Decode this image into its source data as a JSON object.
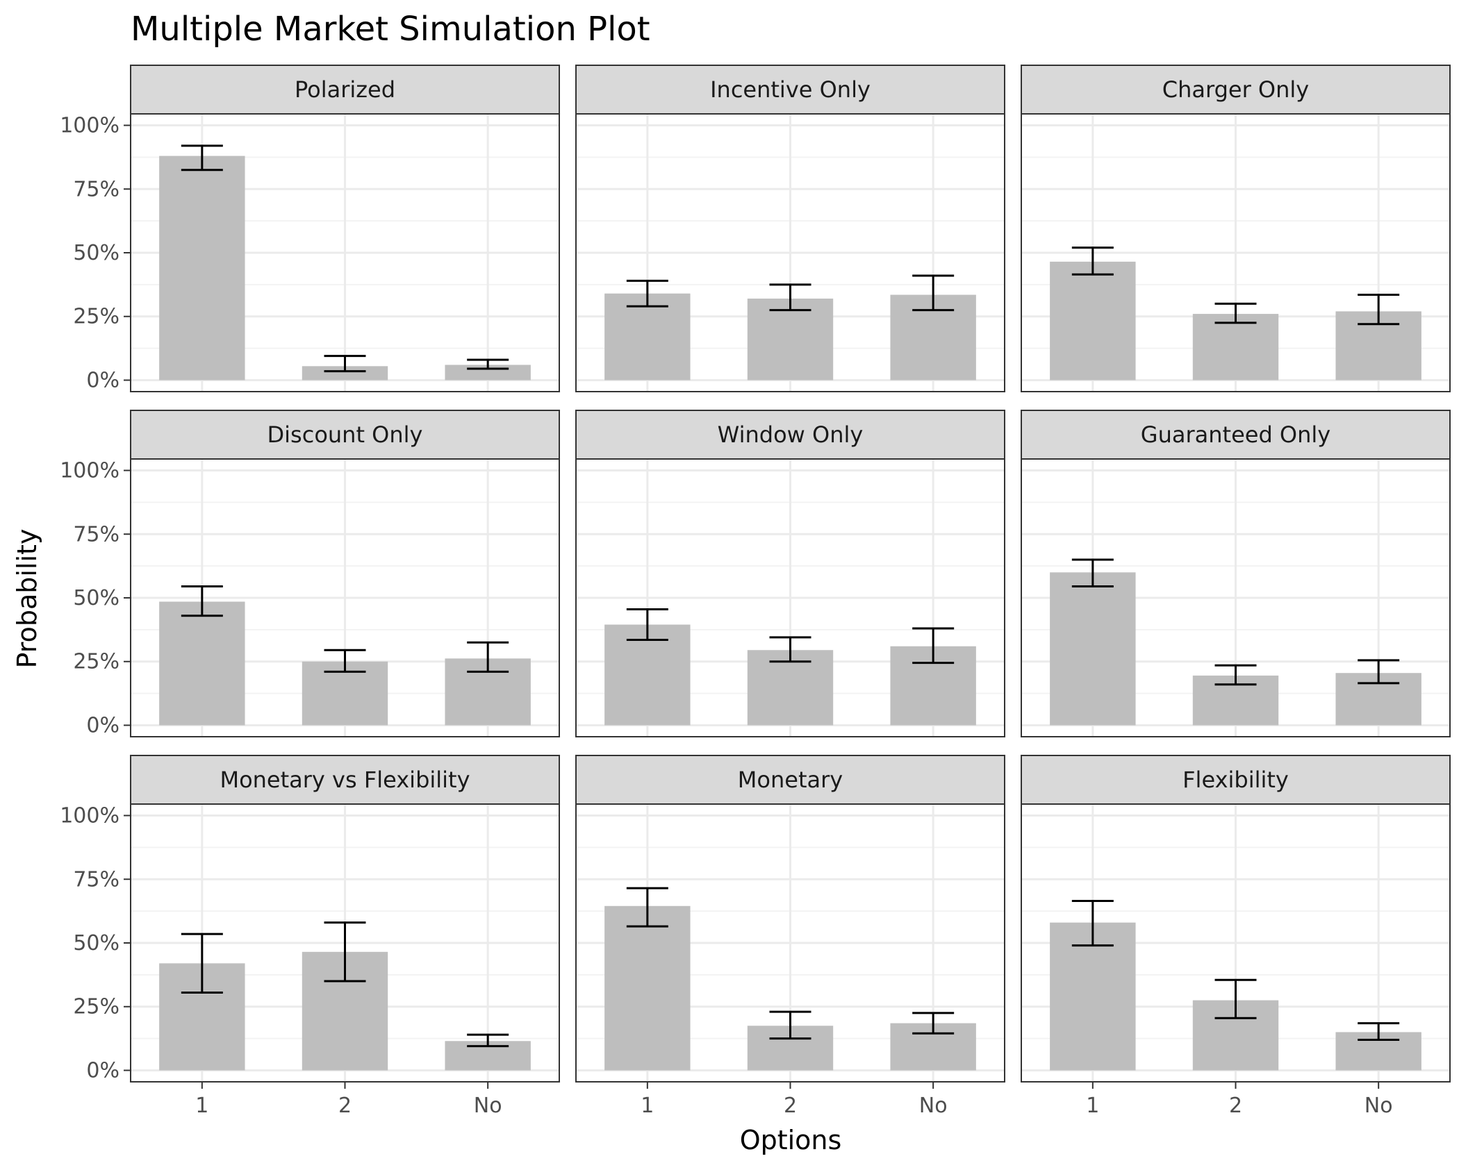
{
  "chart_data": {
    "type": "bar",
    "title": "Multiple Market Simulation Plot",
    "xlabel": "Options",
    "ylabel": "Probability",
    "categories": [
      "1",
      "2",
      "No"
    ],
    "y_ticks": [
      "0%",
      "25%",
      "50%",
      "75%",
      "100%"
    ],
    "ylim": [
      0,
      1.0
    ],
    "grid": true,
    "error_bars": true,
    "facet_layout": "3x3",
    "colors": {
      "bar": "#bebebe",
      "error_bar": "#000000",
      "strip_background": "#d9d9d9",
      "panel_border": "#333333",
      "grid_major": "#ebebeb",
      "grid_minor": "#f3f3f3"
    },
    "panels": [
      {
        "name": "Polarized",
        "values": [
          0.88,
          0.055,
          0.06
        ],
        "lower": [
          0.825,
          0.035,
          0.045
        ],
        "upper": [
          0.92,
          0.095,
          0.08
        ]
      },
      {
        "name": "Incentive Only",
        "values": [
          0.34,
          0.32,
          0.335
        ],
        "lower": [
          0.29,
          0.275,
          0.275
        ],
        "upper": [
          0.39,
          0.375,
          0.41
        ]
      },
      {
        "name": "Charger Only",
        "values": [
          0.465,
          0.26,
          0.27
        ],
        "lower": [
          0.415,
          0.225,
          0.22
        ],
        "upper": [
          0.52,
          0.3,
          0.335
        ]
      },
      {
        "name": "Discount Only",
        "values": [
          0.485,
          0.25,
          0.262
        ],
        "lower": [
          0.43,
          0.21,
          0.21
        ],
        "upper": [
          0.545,
          0.295,
          0.325
        ]
      },
      {
        "name": "Window Only",
        "values": [
          0.395,
          0.295,
          0.31
        ],
        "lower": [
          0.335,
          0.25,
          0.245
        ],
        "upper": [
          0.455,
          0.345,
          0.38
        ]
      },
      {
        "name": "Guaranteed Only",
        "values": [
          0.6,
          0.195,
          0.205
        ],
        "lower": [
          0.545,
          0.16,
          0.165
        ],
        "upper": [
          0.65,
          0.235,
          0.255
        ]
      },
      {
        "name": "Monetary vs Flexibility",
        "values": [
          0.42,
          0.465,
          0.115
        ],
        "lower": [
          0.305,
          0.35,
          0.095
        ],
        "upper": [
          0.535,
          0.58,
          0.14
        ]
      },
      {
        "name": "Monetary",
        "values": [
          0.645,
          0.175,
          0.185
        ],
        "lower": [
          0.565,
          0.125,
          0.145
        ],
        "upper": [
          0.715,
          0.23,
          0.225
        ]
      },
      {
        "name": "Flexibility",
        "values": [
          0.58,
          0.275,
          0.15
        ],
        "lower": [
          0.49,
          0.205,
          0.12
        ],
        "upper": [
          0.665,
          0.355,
          0.185
        ]
      }
    ]
  }
}
